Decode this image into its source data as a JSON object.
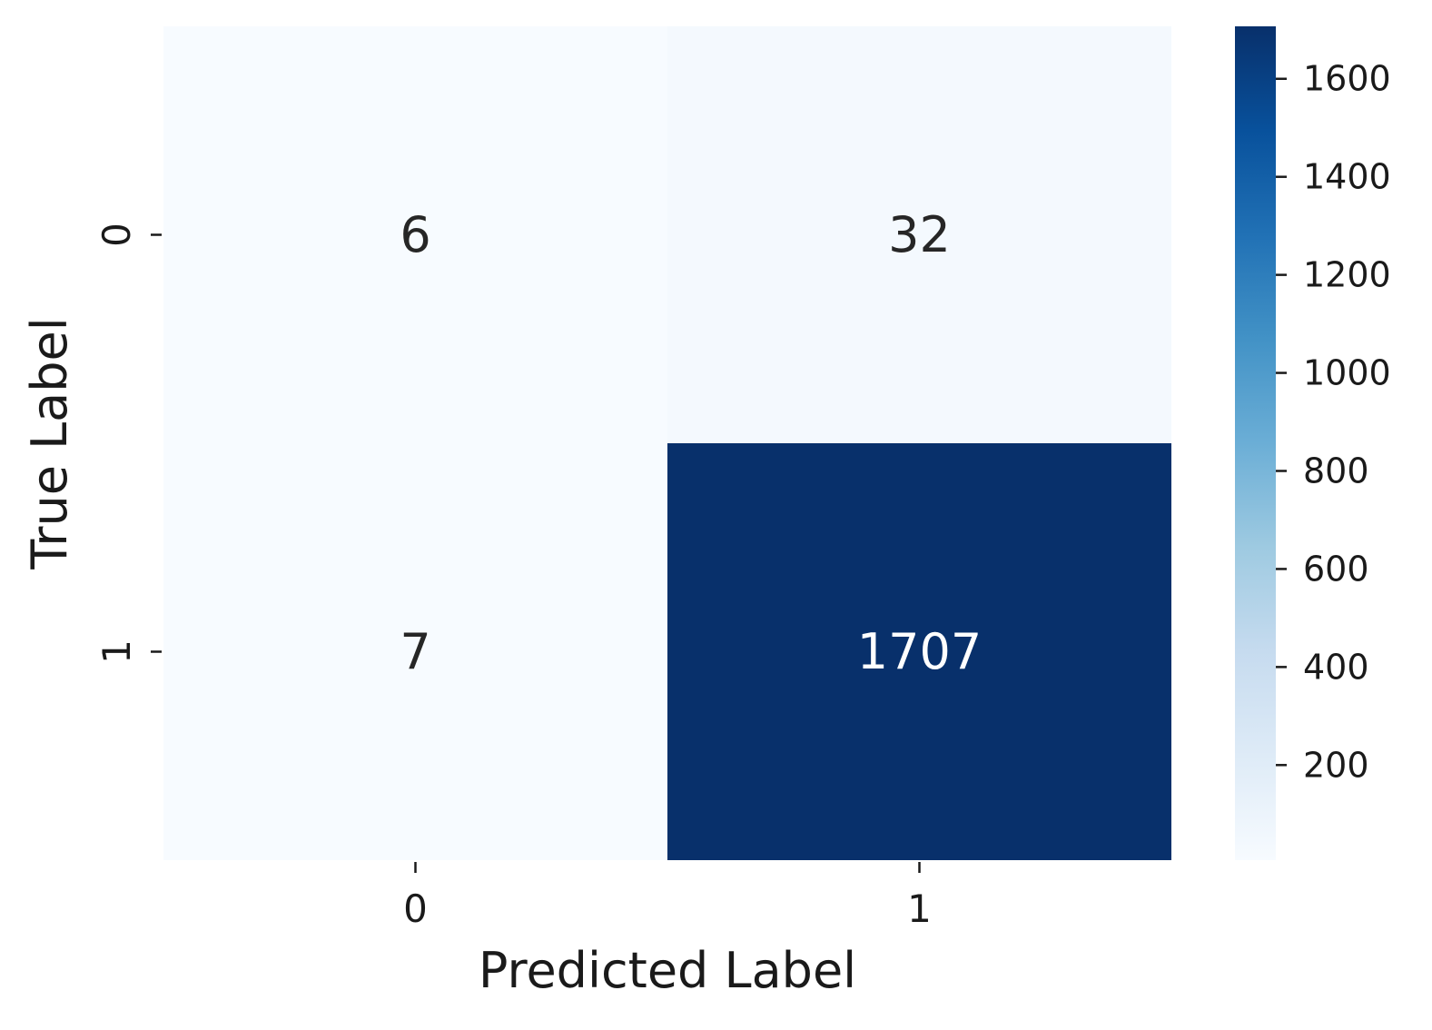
{
  "chart_data": {
    "type": "heatmap",
    "title": "",
    "xlabel": "Predicted Label",
    "ylabel": "True Label",
    "x_categories": [
      "0",
      "1"
    ],
    "y_categories": [
      "0",
      "1"
    ],
    "values": [
      [
        6,
        32
      ],
      [
        7,
        1707
      ]
    ],
    "annotations": [
      [
        "6",
        "32"
      ],
      [
        "7",
        "1707"
      ]
    ],
    "colormap": "Blues",
    "colorbar": {
      "range": [
        6,
        1707
      ],
      "ticks": [
        200,
        400,
        600,
        800,
        1000,
        1200,
        1400,
        1600
      ],
      "tick_labels": [
        "200",
        "400",
        "600",
        "800",
        "1000",
        "1200",
        "1400",
        "1600"
      ]
    },
    "colors": {
      "low": "#f7fbff",
      "high": "#08306b",
      "annotation_dark": "#262626",
      "annotation_light": "#ffffff"
    }
  }
}
